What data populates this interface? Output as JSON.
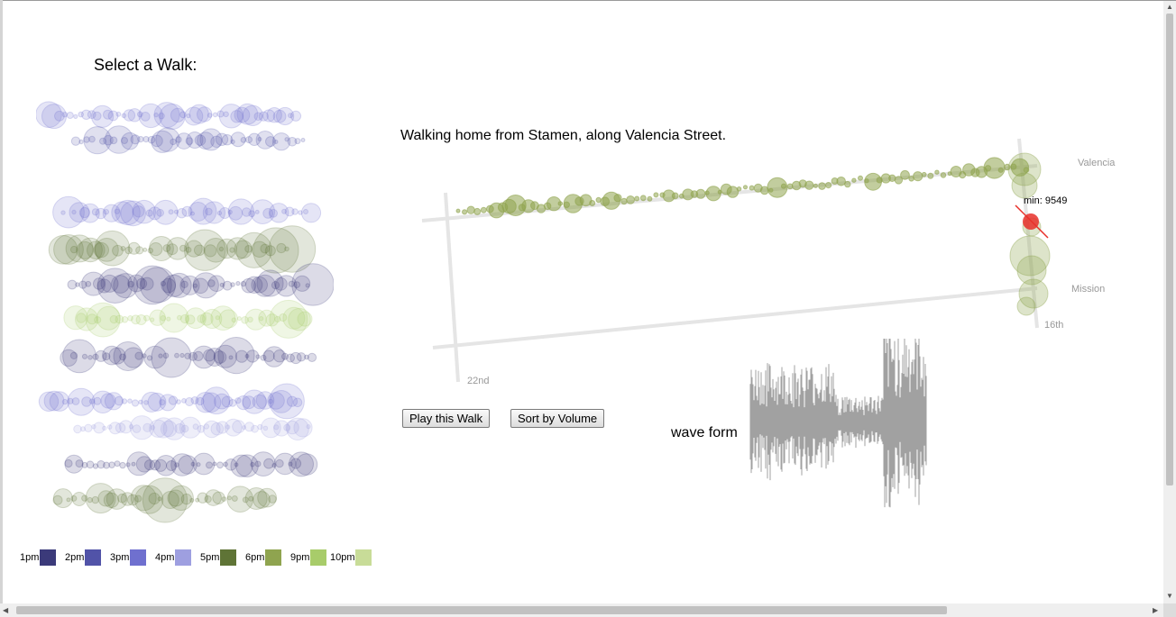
{
  "header": {
    "select_label": "Select a Walk:"
  },
  "walk": {
    "description": "Walking home from Stamen, along Valencia Street."
  },
  "map": {
    "labels": {
      "valencia": "Valencia",
      "mission": "Mission",
      "sixteenth": "16th",
      "twentysecond": "22nd"
    },
    "marker_text": "min: 9549",
    "marker_color": "#e8302a"
  },
  "buttons": {
    "play": "Play this Walk",
    "sort": "Sort by Volume"
  },
  "waveform": {
    "label": "wave form"
  },
  "legend": [
    {
      "label": "1pm",
      "color": "#3b3a7a"
    },
    {
      "label": "2pm",
      "color": "#5153a8"
    },
    {
      "label": "3pm",
      "color": "#6f70cf"
    },
    {
      "label": "4pm",
      "color": "#9e9fe0"
    },
    {
      "label": "5pm",
      "color": "#5f7436"
    },
    {
      "label": "6pm",
      "color": "#8fa44f"
    },
    {
      "label": "9pm",
      "color": "#a8cc6a"
    },
    {
      "label": "10pm",
      "color": "#c8dc98"
    }
  ],
  "walks": [
    {
      "color": "#6f70cf"
    },
    {
      "color": "#5153a8"
    },
    {
      "color": "#6f70cf"
    },
    {
      "color": "#5f7436"
    },
    {
      "color": "#3b3a7a"
    },
    {
      "color": "#a8cc6a"
    },
    {
      "color": "#3b3a7a"
    },
    {
      "color": "#6f70cf"
    },
    {
      "color": "#9e9fe0"
    },
    {
      "color": "#3b3a7a"
    },
    {
      "color": "#5f7436"
    }
  ]
}
